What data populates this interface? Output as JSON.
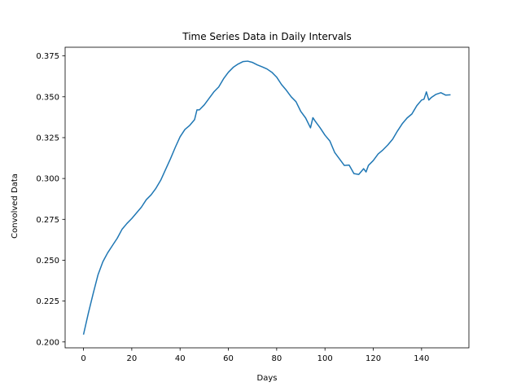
{
  "chart_data": {
    "type": "line",
    "title": "Time Series Data in Daily Intervals",
    "xlabel": "Days",
    "ylabel": "Convolved Data",
    "xlim": [
      -7.6,
      159.6
    ],
    "ylim": [
      0.1964,
      0.3803
    ],
    "xticks": [
      0,
      20,
      40,
      60,
      80,
      100,
      120,
      140
    ],
    "yticks": [
      0.2,
      0.225,
      0.25,
      0.275,
      0.3,
      0.325,
      0.35,
      0.375
    ],
    "ytick_labels": [
      "0.200",
      "0.225",
      "0.250",
      "0.275",
      "0.300",
      "0.325",
      "0.350",
      "0.375"
    ],
    "grid": false,
    "series": [
      {
        "color": "#1f77b4",
        "x": [
          0,
          2,
          4,
          6,
          8,
          10,
          12,
          14,
          16,
          18,
          20,
          22,
          24,
          26,
          28,
          30,
          32,
          34,
          36,
          38,
          40,
          42,
          44,
          46,
          47,
          48,
          50,
          52,
          54,
          56,
          58,
          60,
          62,
          64,
          66,
          68,
          70,
          72,
          74,
          76,
          78,
          80,
          82,
          84,
          86,
          88,
          90,
          92,
          94,
          95,
          96,
          98,
          100,
          102,
          104,
          106,
          108,
          110,
          112,
          114,
          116,
          117,
          118,
          120,
          122,
          124,
          126,
          128,
          130,
          132,
          134,
          136,
          138,
          140,
          141,
          142,
          143,
          144,
          146,
          148,
          150,
          152
        ],
        "y": [
          0.2045,
          0.2175,
          0.2295,
          0.241,
          0.249,
          0.2545,
          0.259,
          0.2635,
          0.269,
          0.2725,
          0.2755,
          0.279,
          0.2825,
          0.287,
          0.29,
          0.294,
          0.299,
          0.3055,
          0.312,
          0.319,
          0.3255,
          0.33,
          0.3325,
          0.336,
          0.342,
          0.342,
          0.345,
          0.349,
          0.353,
          0.356,
          0.361,
          0.365,
          0.368,
          0.37,
          0.3715,
          0.3718,
          0.371,
          0.3695,
          0.3683,
          0.367,
          0.365,
          0.362,
          0.3575,
          0.354,
          0.35,
          0.347,
          0.341,
          0.337,
          0.331,
          0.3372,
          0.335,
          0.331,
          0.3265,
          0.323,
          0.316,
          0.312,
          0.308,
          0.3082,
          0.303,
          0.3025,
          0.306,
          0.304,
          0.308,
          0.311,
          0.315,
          0.3175,
          0.3205,
          0.324,
          0.329,
          0.3335,
          0.337,
          0.3395,
          0.3445,
          0.348,
          0.3485,
          0.353,
          0.348,
          0.3495,
          0.3515,
          0.3525,
          0.351,
          0.3512
        ]
      }
    ]
  }
}
